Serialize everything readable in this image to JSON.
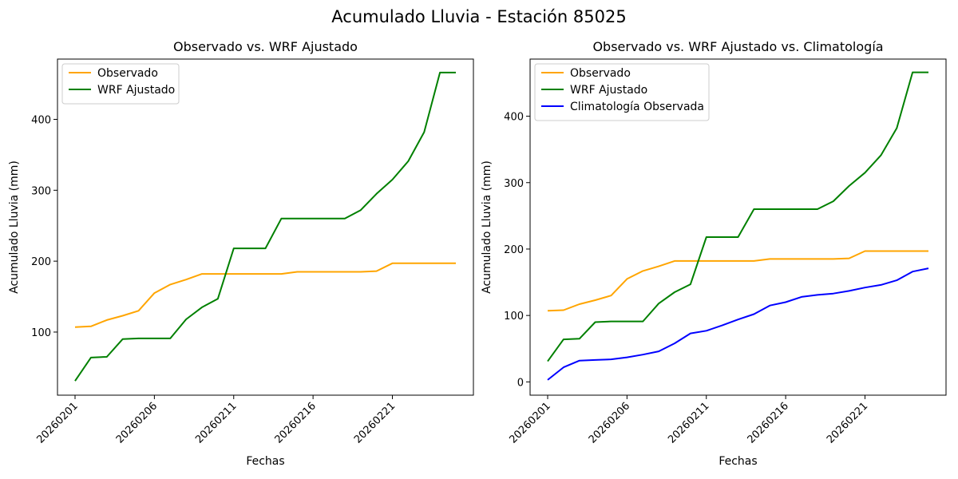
{
  "figure": {
    "suptitle": "Acumulado Lluvia - Estación 85025"
  },
  "colors": {
    "observado": "#ffa500",
    "wrf": "#008000",
    "climatologia": "#0000ff"
  },
  "chart_data": [
    {
      "type": "line",
      "title": "Observado vs. WRF Ajustado",
      "xlabel": "Fechas",
      "ylabel": "Acumulado Lluvia (mm)",
      "x": [
        "20260201",
        "20260202",
        "20260203",
        "20260204",
        "20260205",
        "20260206",
        "20260207",
        "20260208",
        "20260209",
        "20260210",
        "20260211",
        "20260212",
        "20260213",
        "20260214",
        "20260215",
        "20260216",
        "20260217",
        "20260218",
        "20260219",
        "20260220",
        "20260221",
        "20260222",
        "20260223",
        "20260224",
        "20260225"
      ],
      "xticks": [
        "20260201",
        "20260206",
        "20260211",
        "20260216",
        "20260221"
      ],
      "yticks": [
        100,
        200,
        300,
        400
      ],
      "ylim": [
        11,
        485
      ],
      "legend": "top-left",
      "series": [
        {
          "name": "Observado",
          "color": "#ffa500",
          "values": [
            107,
            108,
            117,
            123,
            130,
            155,
            167,
            174,
            182,
            182,
            182,
            182,
            182,
            182,
            185,
            185,
            185,
            185,
            185,
            186,
            197,
            197,
            197,
            197,
            197
          ]
        },
        {
          "name": "WRF Ajustado",
          "color": "#008000",
          "values": [
            31,
            64,
            65,
            90,
            91,
            91,
            91,
            118,
            135,
            147,
            218,
            218,
            218,
            260,
            260,
            260,
            260,
            260,
            272,
            295,
            315,
            341,
            382,
            466,
            466
          ]
        }
      ]
    },
    {
      "type": "line",
      "title": "Observado vs. WRF Ajustado vs. Climatología",
      "xlabel": "Fechas",
      "ylabel": "Acumulado Lluvia (mm)",
      "x": [
        "20260201",
        "20260202",
        "20260203",
        "20260204",
        "20260205",
        "20260206",
        "20260207",
        "20260208",
        "20260209",
        "20260210",
        "20260211",
        "20260212",
        "20260213",
        "20260214",
        "20260215",
        "20260216",
        "20260217",
        "20260218",
        "20260219",
        "20260220",
        "20260221",
        "20260222",
        "20260223",
        "20260224",
        "20260225"
      ],
      "xticks": [
        "20260201",
        "20260206",
        "20260211",
        "20260216",
        "20260221"
      ],
      "yticks": [
        0,
        100,
        200,
        300,
        400
      ],
      "ylim": [
        -20,
        486
      ],
      "legend": "top-left",
      "series": [
        {
          "name": "Observado",
          "color": "#ffa500",
          "values": [
            107,
            108,
            117,
            123,
            130,
            155,
            167,
            174,
            182,
            182,
            182,
            182,
            182,
            182,
            185,
            185,
            185,
            185,
            185,
            186,
            197,
            197,
            197,
            197,
            197
          ]
        },
        {
          "name": "WRF Ajustado",
          "color": "#008000",
          "values": [
            31,
            64,
            65,
            90,
            91,
            91,
            91,
            118,
            135,
            147,
            218,
            218,
            218,
            260,
            260,
            260,
            260,
            260,
            272,
            295,
            315,
            341,
            382,
            466,
            466
          ]
        },
        {
          "name": "Climatología Observada",
          "color": "#0000ff",
          "values": [
            3,
            22,
            32,
            33,
            34,
            37,
            41,
            46,
            58,
            73,
            77,
            85,
            94,
            102,
            115,
            120,
            128,
            131,
            133,
            137,
            142,
            146,
            153,
            166,
            171
          ]
        }
      ]
    }
  ]
}
